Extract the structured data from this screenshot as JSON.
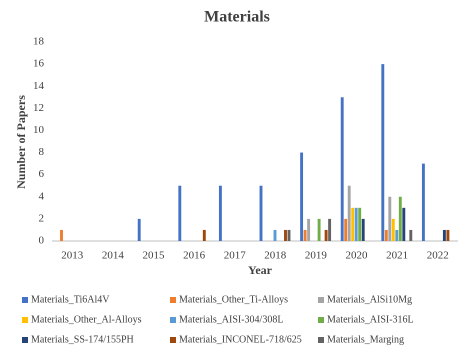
{
  "chart_data": {
    "type": "bar",
    "title": "Materials",
    "x_label": "Year",
    "y_label": "Number of Papers",
    "categories": [
      "2013",
      "2014",
      "2015",
      "2016",
      "2017",
      "2018",
      "2019",
      "2020",
      "2021",
      "2022"
    ],
    "series": [
      {
        "name": "Materials_Ti6Al4V",
        "color": "#4472c4",
        "values": [
          0,
          0,
          2,
          5,
          5,
          5,
          8,
          13,
          16,
          7
        ]
      },
      {
        "name": "Materials_Other_Ti-Alloys",
        "color": "#ed7d31",
        "values": [
          1,
          0,
          0,
          0,
          0,
          0,
          1,
          2,
          1,
          0
        ]
      },
      {
        "name": "Materials_AlSi10Mg",
        "color": "#a5a5a5",
        "values": [
          0,
          0,
          0,
          0,
          0,
          0,
          2,
          5,
          4,
          0
        ]
      },
      {
        "name": "Materials_Other_Al-Alloys",
        "color": "#ffc000",
        "values": [
          0,
          0,
          0,
          0,
          0,
          0,
          0,
          3,
          2,
          0
        ]
      },
      {
        "name": "Materials_AISI-304/308L",
        "color": "#5b9bd5",
        "values": [
          0,
          0,
          0,
          0,
          0,
          1,
          0,
          3,
          1,
          0
        ]
      },
      {
        "name": "Materials_AISI-316L",
        "color": "#70ad47",
        "values": [
          0,
          0,
          0,
          0,
          0,
          0,
          2,
          3,
          4,
          0
        ]
      },
      {
        "name": "Materials_SS-174/155PH",
        "color": "#264478",
        "values": [
          0,
          0,
          0,
          0,
          0,
          0,
          0,
          2,
          3,
          1
        ]
      },
      {
        "name": "Materials_INCONEL-718/625",
        "color": "#9e480e",
        "values": [
          0,
          0,
          0,
          1,
          0,
          1,
          1,
          0,
          0,
          1
        ]
      },
      {
        "name": "Materials_Marging",
        "color": "#636363",
        "values": [
          0,
          0,
          0,
          0,
          0,
          1,
          2,
          0,
          1,
          0
        ]
      }
    ],
    "ylim": [
      0,
      18
    ],
    "yticks": [
      0,
      2,
      4,
      6,
      8,
      10,
      12,
      14,
      16,
      18
    ],
    "grid": false,
    "legend": "bottom"
  }
}
